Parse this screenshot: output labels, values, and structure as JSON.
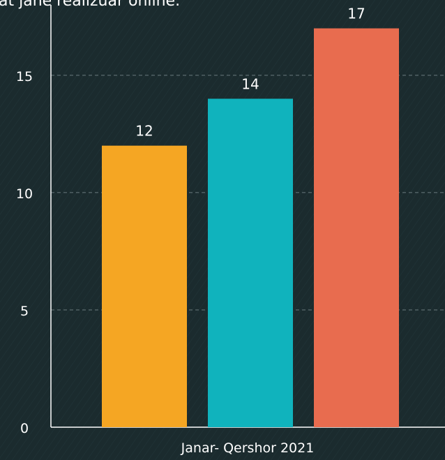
{
  "chart_data": {
    "type": "bar",
    "title": "at jane realizuar online.",
    "x_label": "Janar- Qershor 2021",
    "values": [
      12,
      14,
      17
    ],
    "colors": [
      "#f5a623",
      "#10b3bd",
      "#e86c4f"
    ],
    "ylim": [
      0,
      18
    ],
    "yticks": [
      0,
      5,
      10,
      15
    ],
    "grid": true
  }
}
